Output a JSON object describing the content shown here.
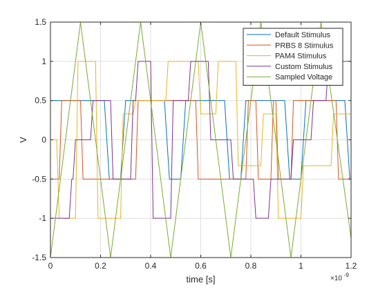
{
  "chart_data": {
    "type": "line",
    "title": "",
    "xlabel": "time [s]",
    "ylabel": "V",
    "x_exponent_label": "×10",
    "x_exponent": "-9",
    "xlim": [
      0,
      1.2
    ],
    "ylim": [
      -1.5,
      1.5
    ],
    "x_scale": 1e-09,
    "xticks": [
      0,
      0.2,
      0.4,
      0.6,
      0.8,
      1,
      1.2
    ],
    "xtick_labels": [
      "0",
      "0.2",
      "0.4",
      "0.6",
      "0.8",
      "1",
      "1.2"
    ],
    "yticks": [
      -1.5,
      -1,
      -0.5,
      0,
      0.5,
      1,
      1.5
    ],
    "ytick_labels": [
      "-1.5",
      "-1",
      "-0.5",
      "0",
      "0.5",
      "1",
      "1.5"
    ],
    "grid": true,
    "legend_position": "top-right",
    "series": [
      {
        "name": "Default Stimulus",
        "color": "#0072BD",
        "x": [
          0,
          0.215,
          0.235,
          0.28,
          0.3,
          0.455,
          0.475,
          0.52,
          0.54,
          0.695,
          0.715,
          0.76,
          0.78,
          0.935,
          0.955,
          1.0,
          1.02,
          1.175,
          1.195,
          1.2
        ],
        "y": [
          0.5,
          0.5,
          -0.5,
          -0.5,
          0.5,
          0.5,
          -0.5,
          -0.5,
          0.5,
          0.5,
          -0.5,
          -0.5,
          0.5,
          0.5,
          -0.5,
          -0.5,
          0.5,
          0.5,
          -0.5,
          -0.5
        ]
      },
      {
        "name": "PRBS 8 Stimulus",
        "color": "#D95319",
        "x": [
          0,
          0.035,
          0.045,
          0.12,
          0.13,
          0.34,
          0.35,
          0.58,
          0.59,
          0.78,
          0.79,
          0.82,
          0.83,
          0.88,
          0.89,
          0.9,
          0.91,
          0.96,
          0.97,
          1.14,
          1.15,
          1.2
        ],
        "y": [
          -0.5,
          -0.5,
          0.5,
          0.5,
          -0.5,
          -0.5,
          0.5,
          0.5,
          -0.5,
          -0.5,
          0.5,
          0.5,
          -0.5,
          -0.5,
          0.5,
          0.5,
          -0.5,
          -0.5,
          0.5,
          0.5,
          -0.5,
          -0.5
        ]
      },
      {
        "name": "PAM4 Stimulus",
        "color": "#EDB120",
        "x": [
          0,
          0.025,
          0.035,
          0.1,
          0.11,
          0.125,
          0.135,
          0.18,
          0.19,
          0.28,
          0.29,
          0.33,
          0.34,
          0.46,
          0.47,
          0.59,
          0.6,
          0.66,
          0.67,
          0.74,
          0.75,
          0.84,
          0.85,
          0.9,
          0.91,
          1.0,
          1.01,
          1.12,
          1.13,
          1.2
        ],
        "y": [
          0,
          0,
          -1,
          -1,
          1,
          1,
          1,
          1,
          -1,
          -1,
          0.33,
          0.33,
          0.5,
          0.5,
          1,
          1,
          0.33,
          0.33,
          1,
          1,
          -0.33,
          -0.33,
          0.33,
          0.33,
          -1,
          -1,
          -0.33,
          -0.33,
          0.33,
          0.33
        ]
      },
      {
        "name": "Custom Stimulus",
        "color": "#7E2F8E",
        "x": [
          0,
          0.075,
          0.085,
          0.09,
          0.1,
          0.16,
          0.17,
          0.24,
          0.25,
          0.32,
          0.33,
          0.34,
          0.35,
          0.4,
          0.41,
          0.48,
          0.49,
          0.55,
          0.56,
          0.63,
          0.64,
          0.72,
          0.73,
          0.81,
          0.82,
          0.87,
          0.88,
          0.96,
          0.97,
          1.04,
          1.05,
          1.1,
          1.11,
          1.2
        ],
        "y": [
          -1,
          -1,
          -0.5,
          -0.5,
          0,
          0,
          0.5,
          0.5,
          -0.5,
          -0.5,
          0.5,
          0.5,
          1,
          1,
          -1,
          -1,
          0.5,
          0.5,
          1,
          1,
          0,
          0,
          -0.5,
          -0.5,
          -1,
          -1,
          -0.5,
          -0.5,
          0,
          0,
          0.5,
          0.5,
          1,
          1
        ]
      },
      {
        "name": "Sampled Voltage",
        "color": "#77AC30",
        "x": [
          0,
          0.12,
          0.24,
          0.36,
          0.48,
          0.6,
          0.72,
          0.84,
          0.96,
          1.08,
          1.2
        ],
        "y": [
          -1.5,
          1.5,
          -1.5,
          1.5,
          -1.5,
          1.5,
          -1.5,
          1.5,
          -1.5,
          1.5,
          -1.25
        ]
      }
    ]
  }
}
